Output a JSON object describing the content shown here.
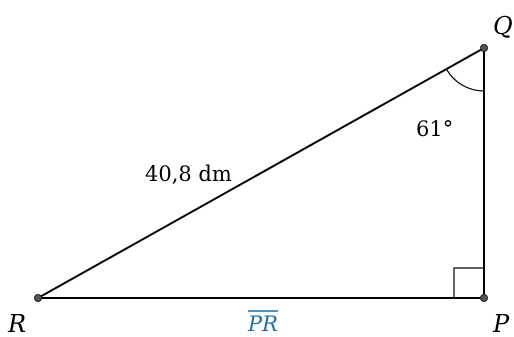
{
  "vertices": {
    "q": "Q",
    "r": "R",
    "p": "P"
  },
  "labels": {
    "hypotenuse": "40,8 dm",
    "angle_q": "61°",
    "segment_pr": "PR"
  },
  "colors": {
    "stroke": "#000000",
    "point": "#555555",
    "segment_label": "#1f6fa3"
  }
}
